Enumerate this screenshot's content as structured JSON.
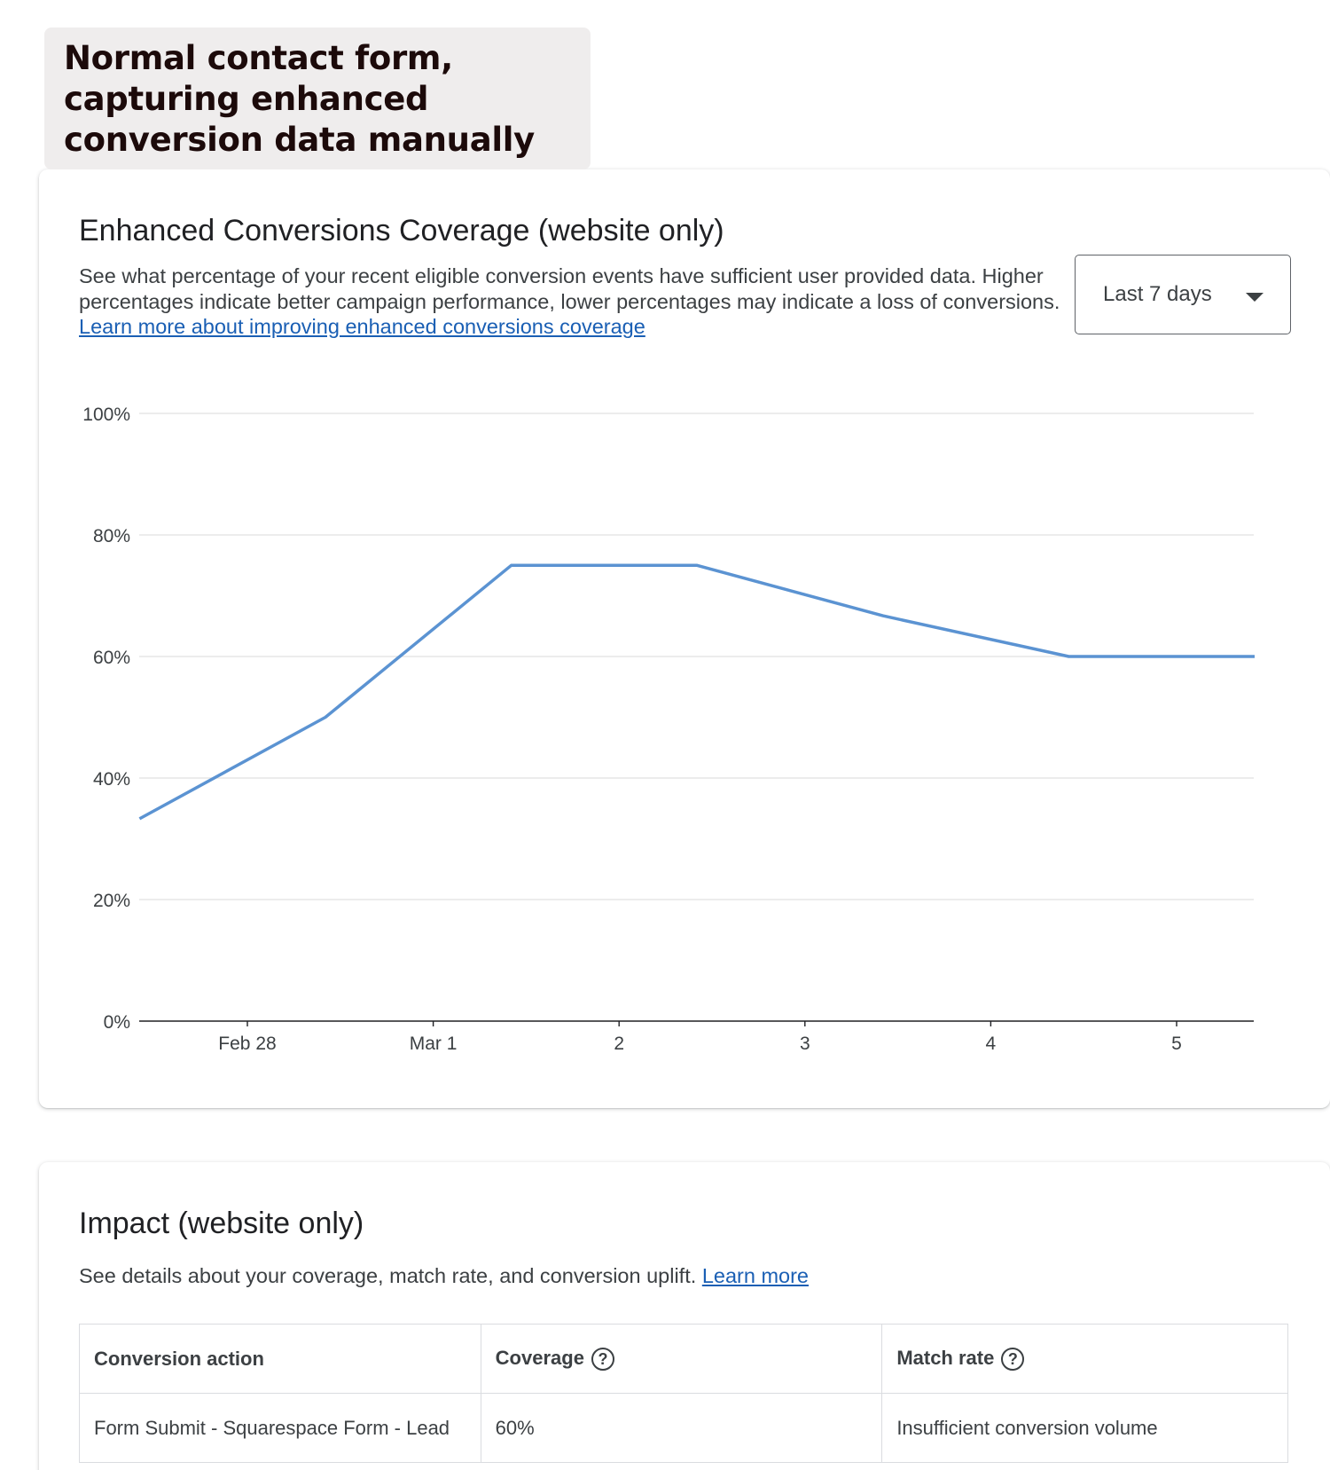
{
  "caption": "Normal contact form, capturing enhanced conversion data manually",
  "coverage_card": {
    "title": "Enhanced Conversions Coverage (website only)",
    "description": "See what percentage of your recent eligible conversion events have sufficient user provided data. Higher percentages indicate better campaign performance, lower percentages may indicate a loss of conversions.",
    "link": "Learn more about improving enhanced conversions coverage",
    "date_range": "Last 7 days"
  },
  "chart_data": {
    "type": "line",
    "x_ticks": [
      "Feb 28",
      "Mar 1",
      "2",
      "3",
      "4",
      "5"
    ],
    "y_ticks": [
      "0%",
      "20%",
      "40%",
      "60%",
      "80%",
      "100%"
    ],
    "ylim": [
      0,
      100
    ],
    "x": [
      -0.58,
      0.42,
      1.42,
      2.42,
      3.42,
      4.42,
      5.42
    ],
    "series": [
      {
        "values": [
          33.3,
          50,
          75,
          75,
          66.7,
          60,
          60
        ]
      }
    ],
    "line_color": "#5b93d2",
    "grid": true
  },
  "impact_card": {
    "title": "Impact (website only)",
    "description": "See details about your coverage, match rate, and conversion uplift.",
    "link": "Learn more",
    "table": {
      "headers": [
        "Conversion action",
        "Coverage",
        "Match rate"
      ],
      "rows": [
        [
          "Form Submit - Squarespace Form - Lead",
          "60%",
          "Insufficient conversion volume"
        ]
      ]
    }
  }
}
